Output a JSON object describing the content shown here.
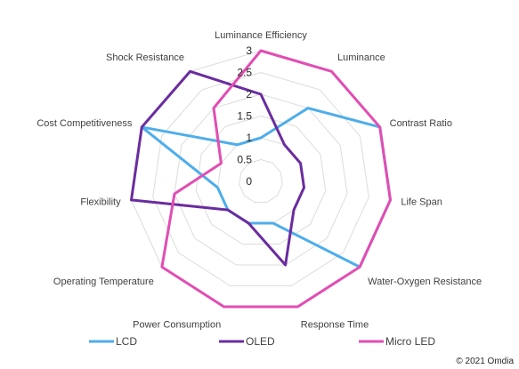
{
  "chart_data": {
    "type": "radar",
    "categories": [
      "Luminance Efficiency",
      "Luminance",
      "Contrast Ratio",
      "Life Span",
      "Water-Oxygen Resistance",
      "Response Time",
      "Power Consumption",
      "Operating Temperature",
      "Flexibility",
      "Cost Competitiveness",
      "Shock Resistance"
    ],
    "ticks": [
      "0",
      "0.5",
      "1",
      "1.5",
      "2",
      "2.5",
      "3"
    ],
    "rmax": 3,
    "grid": true,
    "legend_position": "bottom",
    "series": [
      {
        "name": "LCD",
        "color": "#4EADEA",
        "values": [
          1.0,
          2.0,
          3.0,
          3.0,
          3.0,
          1.0,
          1.0,
          1.0,
          1.0,
          3.0,
          1.0
        ]
      },
      {
        "name": "OLED",
        "color": "#6A2CA0",
        "values": [
          2.0,
          1.0,
          1.0,
          1.0,
          1.0,
          2.0,
          1.0,
          1.0,
          3.0,
          3.0,
          3.0
        ]
      },
      {
        "name": "Micro LED",
        "color": "#E24DB3",
        "values": [
          3.0,
          3.0,
          3.0,
          3.0,
          3.0,
          3.0,
          3.0,
          3.0,
          2.0,
          1.0,
          2.0
        ]
      }
    ]
  },
  "credit": "© 2021 Omdia"
}
